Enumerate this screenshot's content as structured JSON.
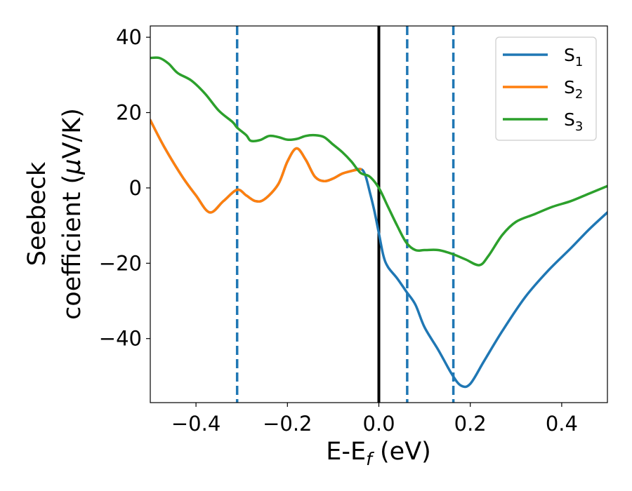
{
  "chart_data": {
    "type": "line",
    "xlabel": {
      "main": "E-E",
      "sub": "f",
      "tail": " (eV)"
    },
    "ylabel": {
      "line1": "Seebeck",
      "line2": "coefficient  (",
      "mu": "μ",
      "line2_tail": "V/K)"
    },
    "xlim": [
      -0.5,
      0.5
    ],
    "ylim": [
      -57,
      43
    ],
    "x_ticks": [
      -0.4,
      -0.2,
      0.0,
      0.2,
      0.4
    ],
    "x_tick_labels": [
      "−0.4",
      "−0.2",
      "0.0",
      "0.2",
      "0.4"
    ],
    "y_ticks": [
      40,
      20,
      0,
      -20,
      -40
    ],
    "y_tick_labels": [
      "40",
      "20",
      "0",
      "−20",
      "−40"
    ],
    "grid": false,
    "legend_position": "top-right",
    "vertical_lines": [
      {
        "x": 0.0,
        "style": "solid",
        "color": "#000000"
      },
      {
        "x": -0.31,
        "style": "dashed",
        "color": "#1f77b4"
      },
      {
        "x": 0.062,
        "style": "dashed",
        "color": "#1f77b4"
      },
      {
        "x": 0.163,
        "style": "dashed",
        "color": "#1f77b4"
      }
    ],
    "series": [
      {
        "name": "S",
        "sub": "1",
        "color": "#1f77b4",
        "points": [
          [
            -0.5,
            18
          ],
          [
            -0.47,
            11
          ],
          [
            -0.43,
            3
          ],
          [
            -0.4,
            -2
          ],
          [
            -0.37,
            -6.5
          ],
          [
            -0.34,
            -3.5
          ],
          [
            -0.31,
            -0.5
          ],
          [
            -0.29,
            -2
          ],
          [
            -0.27,
            -3.5
          ],
          [
            -0.25,
            -3
          ],
          [
            -0.22,
            1
          ],
          [
            -0.2,
            7
          ],
          [
            -0.18,
            10.5
          ],
          [
            -0.16,
            7.5
          ],
          [
            -0.14,
            3
          ],
          [
            -0.12,
            1.8
          ],
          [
            -0.1,
            2.5
          ],
          [
            -0.08,
            3.8
          ],
          [
            -0.06,
            4.5
          ],
          [
            -0.04,
            5
          ],
          [
            -0.03,
            3.5
          ],
          [
            -0.02,
            -1
          ],
          [
            -0.01,
            -6
          ],
          [
            0.0,
            -12
          ],
          [
            0.01,
            -18
          ],
          [
            0.02,
            -21
          ],
          [
            0.04,
            -24
          ],
          [
            0.06,
            -27.5
          ],
          [
            0.08,
            -31
          ],
          [
            0.1,
            -37
          ],
          [
            0.13,
            -43
          ],
          [
            0.16,
            -49.5
          ],
          [
            0.18,
            -52.5
          ],
          [
            0.2,
            -52
          ],
          [
            0.23,
            -46
          ],
          [
            0.27,
            -38
          ],
          [
            0.32,
            -29
          ],
          [
            0.37,
            -22
          ],
          [
            0.42,
            -16
          ],
          [
            0.46,
            -11
          ],
          [
            0.5,
            -6.5
          ]
        ]
      },
      {
        "name": "S",
        "sub": "2",
        "color": "#ff7f0e",
        "points": [
          [
            -0.5,
            18
          ],
          [
            -0.47,
            11
          ],
          [
            -0.43,
            3
          ],
          [
            -0.4,
            -2
          ],
          [
            -0.37,
            -6.5
          ],
          [
            -0.34,
            -3.5
          ],
          [
            -0.31,
            -0.5
          ],
          [
            -0.29,
            -2
          ],
          [
            -0.27,
            -3.5
          ],
          [
            -0.25,
            -3
          ],
          [
            -0.22,
            1
          ],
          [
            -0.2,
            7
          ],
          [
            -0.18,
            10.5
          ],
          [
            -0.16,
            7.5
          ],
          [
            -0.14,
            3
          ],
          [
            -0.12,
            1.8
          ],
          [
            -0.1,
            2.5
          ],
          [
            -0.08,
            3.8
          ],
          [
            -0.06,
            4.5
          ],
          [
            -0.04,
            5
          ]
        ]
      },
      {
        "name": "S",
        "sub": "3",
        "color": "#2ca02c",
        "points": [
          [
            -0.5,
            34.5
          ],
          [
            -0.48,
            34.5
          ],
          [
            -0.46,
            33
          ],
          [
            -0.44,
            30.5
          ],
          [
            -0.41,
            28.5
          ],
          [
            -0.38,
            25
          ],
          [
            -0.35,
            20.5
          ],
          [
            -0.32,
            17.5
          ],
          [
            -0.31,
            16
          ],
          [
            -0.29,
            14
          ],
          [
            -0.28,
            12.5
          ],
          [
            -0.26,
            12.7
          ],
          [
            -0.24,
            13.8
          ],
          [
            -0.22,
            13.5
          ],
          [
            -0.2,
            12.8
          ],
          [
            -0.18,
            13
          ],
          [
            -0.16,
            13.8
          ],
          [
            -0.14,
            14
          ],
          [
            -0.12,
            13.5
          ],
          [
            -0.1,
            11.5
          ],
          [
            -0.08,
            9.5
          ],
          [
            -0.06,
            7
          ],
          [
            -0.04,
            4
          ],
          [
            -0.02,
            3
          ],
          [
            0.0,
            0
          ],
          [
            0.02,
            -5
          ],
          [
            0.04,
            -10
          ],
          [
            0.06,
            -14.5
          ],
          [
            0.08,
            -16.5
          ],
          [
            0.1,
            -16.5
          ],
          [
            0.13,
            -16.5
          ],
          [
            0.16,
            -17.5
          ],
          [
            0.19,
            -19
          ],
          [
            0.22,
            -20.5
          ],
          [
            0.24,
            -18
          ],
          [
            0.27,
            -12.5
          ],
          [
            0.3,
            -9
          ],
          [
            0.34,
            -7
          ],
          [
            0.38,
            -5
          ],
          [
            0.42,
            -3.5
          ],
          [
            0.46,
            -1.5
          ],
          [
            0.5,
            0.5
          ]
        ]
      }
    ]
  }
}
